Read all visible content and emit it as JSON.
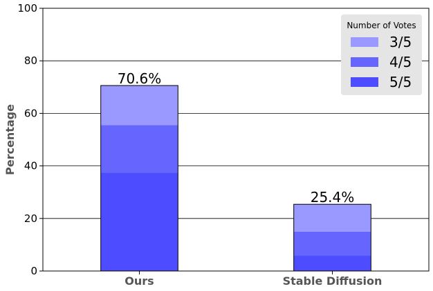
{
  "chart_data": {
    "type": "bar",
    "stacked": true,
    "categories": [
      "Ours",
      "Stable Diffusion"
    ],
    "series": [
      {
        "name": "5/5",
        "values": [
          37.5,
          6.0
        ],
        "color": "#4d4dff"
      },
      {
        "name": "4/5",
        "values": [
          18.0,
          9.0
        ],
        "color": "#6666ff"
      },
      {
        "name": "3/5",
        "values": [
          15.1,
          10.4
        ],
        "color": "#9999ff"
      }
    ],
    "totals": [
      70.6,
      25.4
    ],
    "total_labels": [
      "70.6%",
      "25.4%"
    ],
    "title": "",
    "xlabel": "",
    "ylabel": "Percentage",
    "ylim": [
      0,
      100
    ],
    "yticks": [
      0,
      20,
      40,
      60,
      80,
      100
    ],
    "ytick_labels": [
      "0",
      "20",
      "40",
      "60",
      "80",
      "100"
    ],
    "grid": "horizontal",
    "legend": {
      "title": "Number of Votes",
      "placement": "top-right",
      "entries": [
        "3/5",
        "4/5",
        "5/5"
      ]
    }
  }
}
